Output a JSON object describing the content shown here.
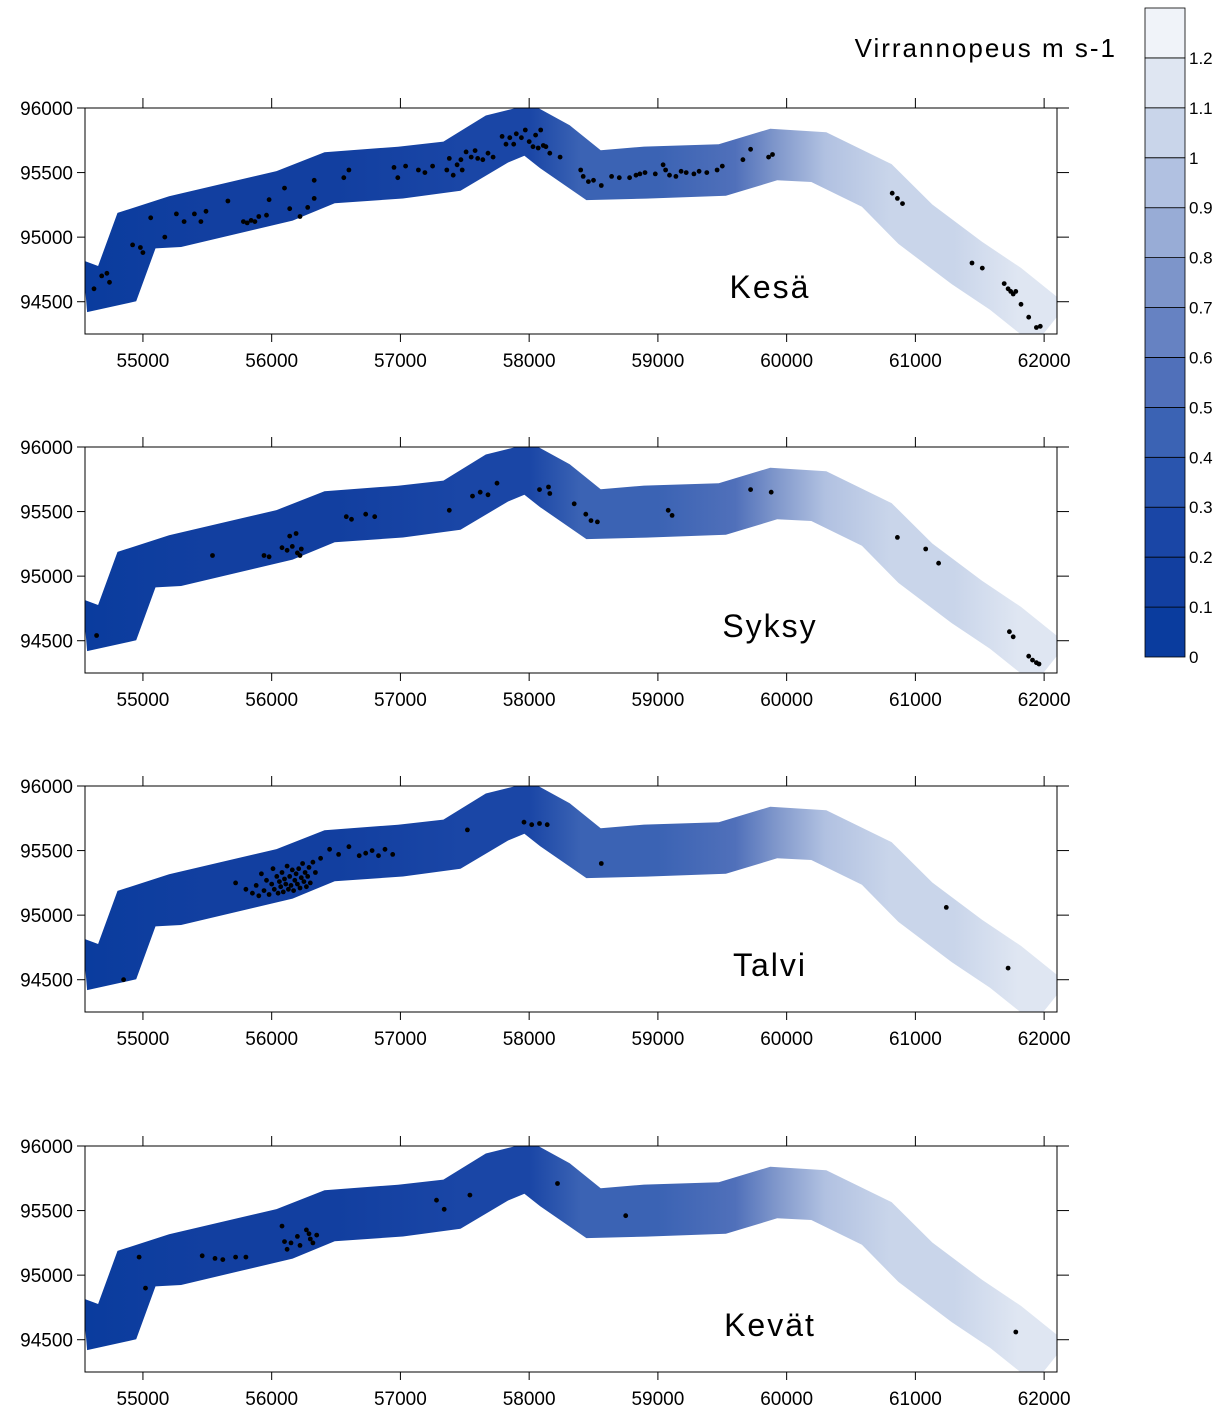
{
  "chart_data": {
    "type": "heatmap",
    "legend": {
      "title": "Virrannopeus m s-1",
      "levels": [
        0,
        0.1,
        0.2,
        0.3,
        0.4,
        0.5,
        0.6,
        0.7,
        0.8,
        0.9,
        1,
        1.1,
        1.2
      ],
      "colors": [
        "#0a3c9e",
        "#123fa0",
        "#1a46a6",
        "#2a55ae",
        "#3b63b4",
        "#5070ba",
        "#6682c2",
        "#7d95ca",
        "#98acd6",
        "#b1c1e1",
        "#c9d5ea",
        "#dfe6f2",
        "#f0f3f9"
      ]
    },
    "xlim": [
      54550,
      62100
    ],
    "ylim": [
      94250,
      96000
    ],
    "x_ticks": [
      55000,
      56000,
      57000,
      58000,
      59000,
      60000,
      61000,
      62000
    ],
    "y_ticks": [
      94500,
      95000,
      95500,
      96000
    ],
    "river_centerline": [
      [
        54550,
        94620
      ],
      [
        54800,
        94640
      ],
      [
        54950,
        95050
      ],
      [
        55250,
        95120
      ],
      [
        55800,
        95250
      ],
      [
        56100,
        95320
      ],
      [
        56450,
        95460
      ],
      [
        57000,
        95500
      ],
      [
        57400,
        95550
      ],
      [
        57750,
        95760
      ],
      [
        57990,
        95830
      ],
      [
        58200,
        95700
      ],
      [
        58500,
        95480
      ],
      [
        58900,
        95500
      ],
      [
        59500,
        95520
      ],
      [
        59900,
        95640
      ],
      [
        60250,
        95620
      ],
      [
        60700,
        95400
      ],
      [
        61000,
        95100
      ],
      [
        61400,
        94800
      ],
      [
        61700,
        94600
      ],
      [
        62050,
        94320
      ]
    ],
    "velocity_profile": [
      [
        54550,
        0.03
      ],
      [
        55500,
        0.12
      ],
      [
        56500,
        0.18
      ],
      [
        57500,
        0.22
      ],
      [
        58000,
        0.26
      ],
      [
        58400,
        0.4
      ],
      [
        59000,
        0.46
      ],
      [
        59600,
        0.52
      ],
      [
        59900,
        0.75
      ],
      [
        60300,
        0.92
      ],
      [
        60800,
        1.0
      ],
      [
        61300,
        1.05
      ],
      [
        61800,
        1.1
      ],
      [
        62100,
        1.15
      ]
    ],
    "panels": [
      {
        "label": "Kesä",
        "points": [
          [
            54620,
            94600
          ],
          [
            54680,
            94700
          ],
          [
            54720,
            94720
          ],
          [
            54740,
            94650
          ],
          [
            54920,
            94940
          ],
          [
            54980,
            94920
          ],
          [
            55000,
            94880
          ],
          [
            55060,
            95150
          ],
          [
            55170,
            95000
          ],
          [
            55260,
            95180
          ],
          [
            55320,
            95120
          ],
          [
            55400,
            95180
          ],
          [
            55450,
            95120
          ],
          [
            55490,
            95200
          ],
          [
            55660,
            95280
          ],
          [
            55780,
            95120
          ],
          [
            55810,
            95110
          ],
          [
            55840,
            95130
          ],
          [
            55870,
            95120
          ],
          [
            55900,
            95160
          ],
          [
            55960,
            95170
          ],
          [
            55980,
            95290
          ],
          [
            56100,
            95380
          ],
          [
            56140,
            95220
          ],
          [
            56220,
            95160
          ],
          [
            56280,
            95230
          ],
          [
            56330,
            95300
          ],
          [
            56330,
            95440
          ],
          [
            56560,
            95460
          ],
          [
            56600,
            95520
          ],
          [
            56950,
            95540
          ],
          [
            56980,
            95460
          ],
          [
            57040,
            95550
          ],
          [
            57140,
            95520
          ],
          [
            57190,
            95500
          ],
          [
            57250,
            95550
          ],
          [
            57360,
            95520
          ],
          [
            57380,
            95610
          ],
          [
            57410,
            95480
          ],
          [
            57440,
            95560
          ],
          [
            57470,
            95600
          ],
          [
            57480,
            95520
          ],
          [
            57510,
            95660
          ],
          [
            57550,
            95620
          ],
          [
            57580,
            95670
          ],
          [
            57600,
            95610
          ],
          [
            57640,
            95600
          ],
          [
            57680,
            95650
          ],
          [
            57720,
            95620
          ],
          [
            57790,
            95780
          ],
          [
            57820,
            95720
          ],
          [
            57850,
            95770
          ],
          [
            57880,
            95720
          ],
          [
            57900,
            95800
          ],
          [
            57940,
            95770
          ],
          [
            57970,
            95830
          ],
          [
            58000,
            95740
          ],
          [
            58030,
            95700
          ],
          [
            58050,
            95790
          ],
          [
            58070,
            95690
          ],
          [
            58090,
            95830
          ],
          [
            58110,
            95710
          ],
          [
            58130,
            95700
          ],
          [
            58160,
            95650
          ],
          [
            58240,
            95620
          ],
          [
            58400,
            95520
          ],
          [
            58420,
            95470
          ],
          [
            58460,
            95430
          ],
          [
            58500,
            95440
          ],
          [
            58560,
            95400
          ],
          [
            58640,
            95470
          ],
          [
            58700,
            95460
          ],
          [
            58780,
            95460
          ],
          [
            58830,
            95480
          ],
          [
            58860,
            95490
          ],
          [
            58900,
            95500
          ],
          [
            58980,
            95490
          ],
          [
            59040,
            95560
          ],
          [
            59060,
            95520
          ],
          [
            59090,
            95480
          ],
          [
            59140,
            95470
          ],
          [
            59180,
            95510
          ],
          [
            59220,
            95500
          ],
          [
            59280,
            95490
          ],
          [
            59320,
            95510
          ],
          [
            59380,
            95500
          ],
          [
            59460,
            95520
          ],
          [
            59500,
            95550
          ],
          [
            59660,
            95600
          ],
          [
            59720,
            95680
          ],
          [
            59860,
            95620
          ],
          [
            59890,
            95640
          ],
          [
            60820,
            95340
          ],
          [
            60860,
            95300
          ],
          [
            60900,
            95260
          ],
          [
            61440,
            94800
          ],
          [
            61520,
            94760
          ],
          [
            61690,
            94640
          ],
          [
            61720,
            94600
          ],
          [
            61740,
            94580
          ],
          [
            61760,
            94560
          ],
          [
            61780,
            94580
          ],
          [
            61820,
            94480
          ],
          [
            61880,
            94380
          ],
          [
            61940,
            94300
          ],
          [
            61970,
            94310
          ]
        ]
      },
      {
        "label": "Syksy",
        "points": [
          [
            54640,
            94540
          ],
          [
            55540,
            95160
          ],
          [
            55940,
            95160
          ],
          [
            55980,
            95150
          ],
          [
            56080,
            95220
          ],
          [
            56120,
            95200
          ],
          [
            56140,
            95310
          ],
          [
            56160,
            95230
          ],
          [
            56190,
            95330
          ],
          [
            56200,
            95180
          ],
          [
            56220,
            95160
          ],
          [
            56230,
            95210
          ],
          [
            56580,
            95460
          ],
          [
            56620,
            95440
          ],
          [
            56730,
            95480
          ],
          [
            56800,
            95460
          ],
          [
            57380,
            95510
          ],
          [
            57560,
            95620
          ],
          [
            57620,
            95650
          ],
          [
            57680,
            95630
          ],
          [
            57750,
            95720
          ],
          [
            58080,
            95670
          ],
          [
            58150,
            95690
          ],
          [
            58160,
            95640
          ],
          [
            58350,
            95560
          ],
          [
            58440,
            95480
          ],
          [
            58480,
            95430
          ],
          [
            58530,
            95420
          ],
          [
            59080,
            95510
          ],
          [
            59110,
            95470
          ],
          [
            59720,
            95670
          ],
          [
            59880,
            95650
          ],
          [
            60860,
            95300
          ],
          [
            61080,
            95210
          ],
          [
            61180,
            95100
          ],
          [
            61730,
            94570
          ],
          [
            61760,
            94530
          ],
          [
            61880,
            94380
          ],
          [
            61910,
            94350
          ],
          [
            61940,
            94330
          ],
          [
            61960,
            94320
          ]
        ]
      },
      {
        "label": "Talvi",
        "points": [
          [
            54850,
            94500
          ],
          [
            55720,
            95250
          ],
          [
            55800,
            95200
          ],
          [
            55850,
            95170
          ],
          [
            55880,
            95230
          ],
          [
            55900,
            95150
          ],
          [
            55920,
            95320
          ],
          [
            55940,
            95190
          ],
          [
            55960,
            95270
          ],
          [
            55980,
            95160
          ],
          [
            56000,
            95240
          ],
          [
            56010,
            95360
          ],
          [
            56020,
            95200
          ],
          [
            56040,
            95300
          ],
          [
            56050,
            95170
          ],
          [
            56060,
            95260
          ],
          [
            56070,
            95220
          ],
          [
            56080,
            95330
          ],
          [
            56090,
            95180
          ],
          [
            56100,
            95280
          ],
          [
            56110,
            95240
          ],
          [
            56120,
            95380
          ],
          [
            56130,
            95200
          ],
          [
            56140,
            95300
          ],
          [
            56150,
            95230
          ],
          [
            56160,
            95350
          ],
          [
            56170,
            95190
          ],
          [
            56180,
            95270
          ],
          [
            56190,
            95320
          ],
          [
            56200,
            95240
          ],
          [
            56210,
            95360
          ],
          [
            56220,
            95210
          ],
          [
            56230,
            95290
          ],
          [
            56240,
            95400
          ],
          [
            56250,
            95260
          ],
          [
            56260,
            95330
          ],
          [
            56270,
            95220
          ],
          [
            56280,
            95300
          ],
          [
            56290,
            95370
          ],
          [
            56300,
            95250
          ],
          [
            56320,
            95410
          ],
          [
            56340,
            95330
          ],
          [
            56380,
            95440
          ],
          [
            56450,
            95510
          ],
          [
            56520,
            95470
          ],
          [
            56600,
            95530
          ],
          [
            56680,
            95460
          ],
          [
            56730,
            95480
          ],
          [
            56780,
            95500
          ],
          [
            56830,
            95460
          ],
          [
            56880,
            95510
          ],
          [
            56940,
            95470
          ],
          [
            57520,
            95660
          ],
          [
            57960,
            95720
          ],
          [
            58020,
            95700
          ],
          [
            58080,
            95710
          ],
          [
            58140,
            95700
          ],
          [
            58560,
            95400
          ],
          [
            61240,
            95060
          ],
          [
            61720,
            94590
          ]
        ]
      },
      {
        "label": "Kevät",
        "points": [
          [
            54970,
            95140
          ],
          [
            55020,
            94900
          ],
          [
            55460,
            95150
          ],
          [
            55560,
            95130
          ],
          [
            55620,
            95120
          ],
          [
            55720,
            95140
          ],
          [
            55800,
            95140
          ],
          [
            56080,
            95380
          ],
          [
            56100,
            95260
          ],
          [
            56120,
            95200
          ],
          [
            56150,
            95250
          ],
          [
            56200,
            95300
          ],
          [
            56220,
            95230
          ],
          [
            56270,
            95350
          ],
          [
            56290,
            95320
          ],
          [
            56300,
            95280
          ],
          [
            56320,
            95250
          ],
          [
            56350,
            95310
          ],
          [
            57280,
            95580
          ],
          [
            57340,
            95510
          ],
          [
            57540,
            95620
          ],
          [
            58220,
            95710
          ],
          [
            58750,
            95460
          ],
          [
            61780,
            94560
          ]
        ]
      }
    ]
  }
}
